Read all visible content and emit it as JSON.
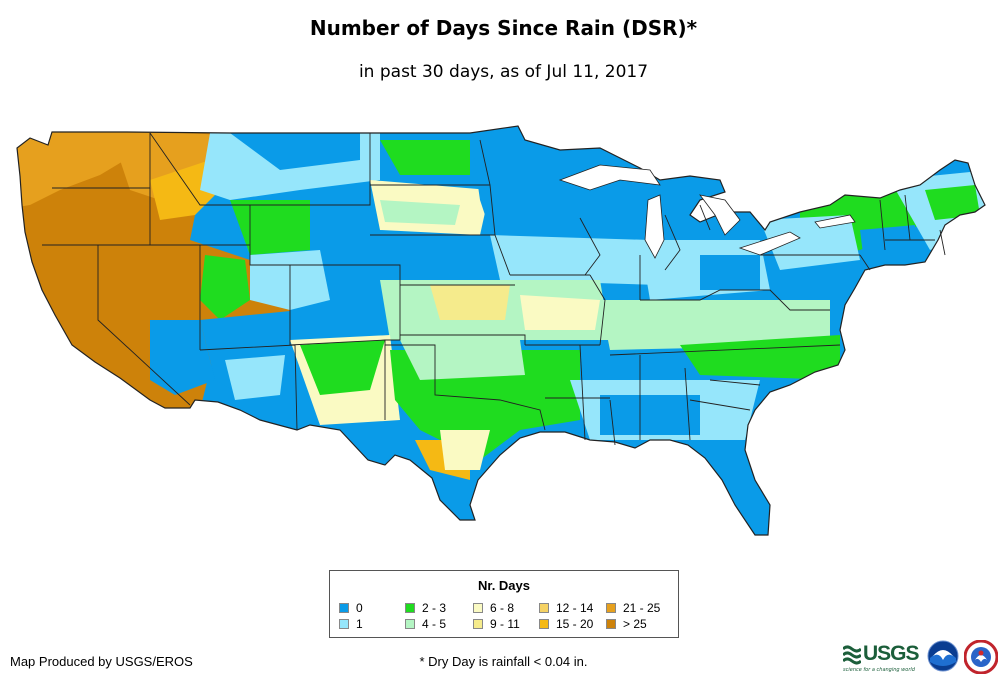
{
  "title": "Number of Days Since Rain (DSR)*",
  "subtitle": "in past 30 days, as of Jul 11, 2017",
  "legend": {
    "title": "Nr. Days",
    "items": [
      {
        "label": "0",
        "color": "#0a9be8"
      },
      {
        "label": "1",
        "color": "#96e6fb"
      },
      {
        "label": "2 - 3",
        "color": "#1fdc1f"
      },
      {
        "label": "4 - 5",
        "color": "#b4f5c3"
      },
      {
        "label": "6 - 8",
        "color": "#fafac3"
      },
      {
        "label": "9 - 11",
        "color": "#f5eb8c"
      },
      {
        "label": "12 - 14",
        "color": "#f5d264"
      },
      {
        "label": "15 - 20",
        "color": "#f5b914"
      },
      {
        "label": "21 - 25",
        "color": "#e6a01e"
      },
      {
        "label": "> 25",
        "color": "#cd820a"
      }
    ]
  },
  "producer": "Map Produced by USGS/EROS",
  "footnote": "* Dry Day is rainfall < 0.04 in.",
  "logos": {
    "usgs": "USGS",
    "usgs_tagline": "science for a changing world",
    "noaa_icon": "noaa-logo-icon",
    "nws_icon": "nws-logo-icon"
  }
}
